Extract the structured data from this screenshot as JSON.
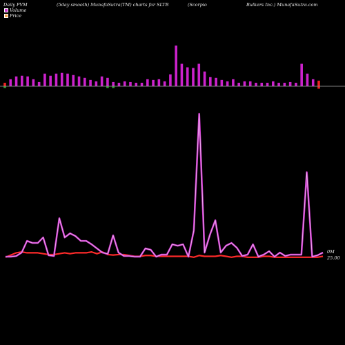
{
  "header": {
    "left": "Daily PVM",
    "center": "(5day smooth) MunafaSutra(TM) charts for SLTB",
    "company_a": "(Scorpio",
    "company_b": "Bulkers Inc.) MunafaSutra.com"
  },
  "legend": {
    "volume_label": "Volume",
    "price_label": "Price",
    "volume_color": "#cc33cc",
    "price_color": "#f5a04a"
  },
  "colors": {
    "background": "#000000",
    "volume_line": "#cc33cc",
    "volume_line_inner": "#f0c0f0",
    "price_line": "#ff2a2a",
    "up_bar": "#cc22cc",
    "down_bar": "#ee2222",
    "flat_bar": "#33aa33",
    "baseline": "#aaaaaa"
  },
  "axis": {
    "volume_tick_label": "0M",
    "price_tick_label": "25.00"
  },
  "chart_data": {
    "type": "bar",
    "ticker": "SLTB",
    "note_series": [
      "volume_bars",
      "volume_smooth",
      "price"
    ],
    "volume_bars": [
      {
        "v": 5,
        "c": "down"
      },
      {
        "v": 10,
        "c": "up"
      },
      {
        "v": 14,
        "c": "up"
      },
      {
        "v": 15,
        "c": "up"
      },
      {
        "v": 14,
        "c": "up"
      },
      {
        "v": 10,
        "c": "up"
      },
      {
        "v": 6,
        "c": "up"
      },
      {
        "v": 18,
        "c": "up"
      },
      {
        "v": 15,
        "c": "up"
      },
      {
        "v": 18,
        "c": "up"
      },
      {
        "v": 19,
        "c": "up"
      },
      {
        "v": 18,
        "c": "up"
      },
      {
        "v": 16,
        "c": "up"
      },
      {
        "v": 14,
        "c": "up"
      },
      {
        "v": 12,
        "c": "up"
      },
      {
        "v": 9,
        "c": "up"
      },
      {
        "v": 7,
        "c": "up"
      },
      {
        "v": 14,
        "c": "up"
      },
      {
        "v": 12,
        "c": "up"
      },
      {
        "v": 6,
        "c": "up"
      },
      {
        "v": 5,
        "c": "up"
      },
      {
        "v": 7,
        "c": "up"
      },
      {
        "v": 6,
        "c": "up"
      },
      {
        "v": 5,
        "c": "up"
      },
      {
        "v": 5,
        "c": "up"
      },
      {
        "v": 10,
        "c": "up"
      },
      {
        "v": 9,
        "c": "up"
      },
      {
        "v": 10,
        "c": "up"
      },
      {
        "v": 7,
        "c": "up"
      },
      {
        "v": 17,
        "c": "up"
      },
      {
        "v": 58,
        "c": "up"
      },
      {
        "v": 32,
        "c": "up"
      },
      {
        "v": 27,
        "c": "up"
      },
      {
        "v": 26,
        "c": "up"
      },
      {
        "v": 32,
        "c": "up"
      },
      {
        "v": 21,
        "c": "up"
      },
      {
        "v": 13,
        "c": "up"
      },
      {
        "v": 12,
        "c": "up"
      },
      {
        "v": 9,
        "c": "up"
      },
      {
        "v": 7,
        "c": "up"
      },
      {
        "v": 10,
        "c": "up"
      },
      {
        "v": 5,
        "c": "up"
      },
      {
        "v": 7,
        "c": "up"
      },
      {
        "v": 7,
        "c": "up"
      },
      {
        "v": 5,
        "c": "up"
      },
      {
        "v": 5,
        "c": "up"
      },
      {
        "v": 5,
        "c": "up"
      },
      {
        "v": 7,
        "c": "up"
      },
      {
        "v": 5,
        "c": "up"
      },
      {
        "v": 5,
        "c": "up"
      },
      {
        "v": 6,
        "c": "up"
      },
      {
        "v": 5,
        "c": "up"
      },
      {
        "v": 32,
        "c": "up"
      },
      {
        "v": 18,
        "c": "up"
      },
      {
        "v": 10,
        "c": "up"
      },
      {
        "v": 8,
        "c": "down"
      }
    ],
    "down_extra_indices": [
      0,
      18,
      19,
      55
    ],
    "volume_smooth": [
      2,
      2,
      3,
      8,
      25,
      22,
      22,
      30,
      4,
      3,
      58,
      30,
      36,
      32,
      25,
      25,
      20,
      14,
      8,
      6,
      33,
      8,
      3,
      3,
      2,
      2,
      14,
      12,
      2,
      5,
      5,
      20,
      18,
      20,
      2,
      40,
      210,
      8,
      34,
      55,
      8,
      18,
      22,
      15,
      3,
      5,
      20,
      2,
      5,
      10,
      2,
      8,
      3,
      5,
      5,
      5,
      125,
      2,
      4,
      8
    ],
    "price": [
      25.0,
      25.05,
      25.1,
      25.12,
      25.1,
      25.1,
      25.1,
      25.08,
      25.06,
      25.06,
      25.08,
      25.1,
      25.08,
      25.1,
      25.1,
      25.1,
      25.12,
      25.08,
      25.12,
      25.06,
      25.05,
      25.06,
      25.06,
      25.04,
      25.02,
      25.02,
      25.04,
      25.04,
      25.02,
      25.02,
      25.02,
      25.02,
      25.02,
      25.02,
      25.02,
      25.0,
      25.04,
      25.02,
      25.02,
      25.02,
      25.04,
      25.02,
      25.0,
      25.02,
      25.02,
      25.0,
      25.0,
      25.0,
      25.02,
      25.02,
      25.0,
      25.0,
      25.0,
      25.0,
      25.0,
      25.0,
      25.0,
      25.0,
      25.0,
      25.02
    ],
    "ylim_volume_bars": [
      0,
      60
    ],
    "ylim_volume_smooth": [
      0,
      210
    ],
    "grid": false
  }
}
